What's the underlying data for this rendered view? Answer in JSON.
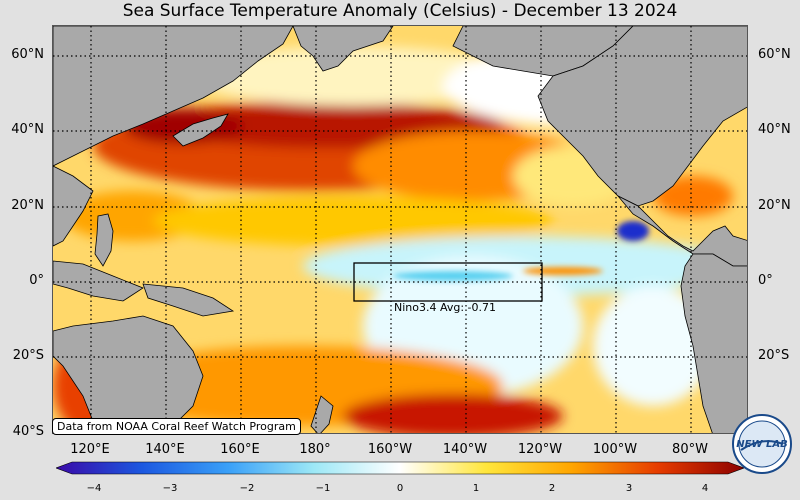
{
  "title": "Sea Surface Temperature Anomaly (Celsius) - December 13 2024",
  "lat_labels": [
    "60°N",
    "40°N",
    "20°N",
    "0°",
    "20°S",
    "40°S"
  ],
  "lon_labels": [
    "120°E",
    "140°E",
    "160°E",
    "180°",
    "160°W",
    "140°W",
    "120°W",
    "100°W",
    "80°W"
  ],
  "box_label": "Nino3.4 Avg: -0.71",
  "credit": "Data from NOAA Coral Reef Watch Program",
  "colorbar": {
    "ticks": [
      "−4",
      "−3",
      "−2",
      "−1",
      "0",
      "1",
      "2",
      "3",
      "4"
    ],
    "range": [
      -4,
      4
    ],
    "stops": [
      "#3a0aa8",
      "#1c58e0",
      "#3aa0f8",
      "#9de8f6",
      "#ffffff",
      "#ffe63c",
      "#ffa500",
      "#e63c00",
      "#8c0000"
    ]
  },
  "logo": {
    "text": "NEW LAB"
  },
  "colors": {
    "land": "#a9a9a9",
    "background": "#e1e1e1",
    "gridline": "#000000",
    "nino_box": "#000000"
  },
  "map": {
    "projection": "equirectangular",
    "lon_range": [
      "110°E",
      "70°W"
    ],
    "lat_range": [
      "40°S",
      "68°N"
    ],
    "grid_spacing_degrees": 20,
    "gridline_style": "dotted",
    "nino34_region": {
      "lon": [
        "170°W",
        "120°W"
      ],
      "lat": [
        "5°S",
        "5°N"
      ]
    }
  }
}
